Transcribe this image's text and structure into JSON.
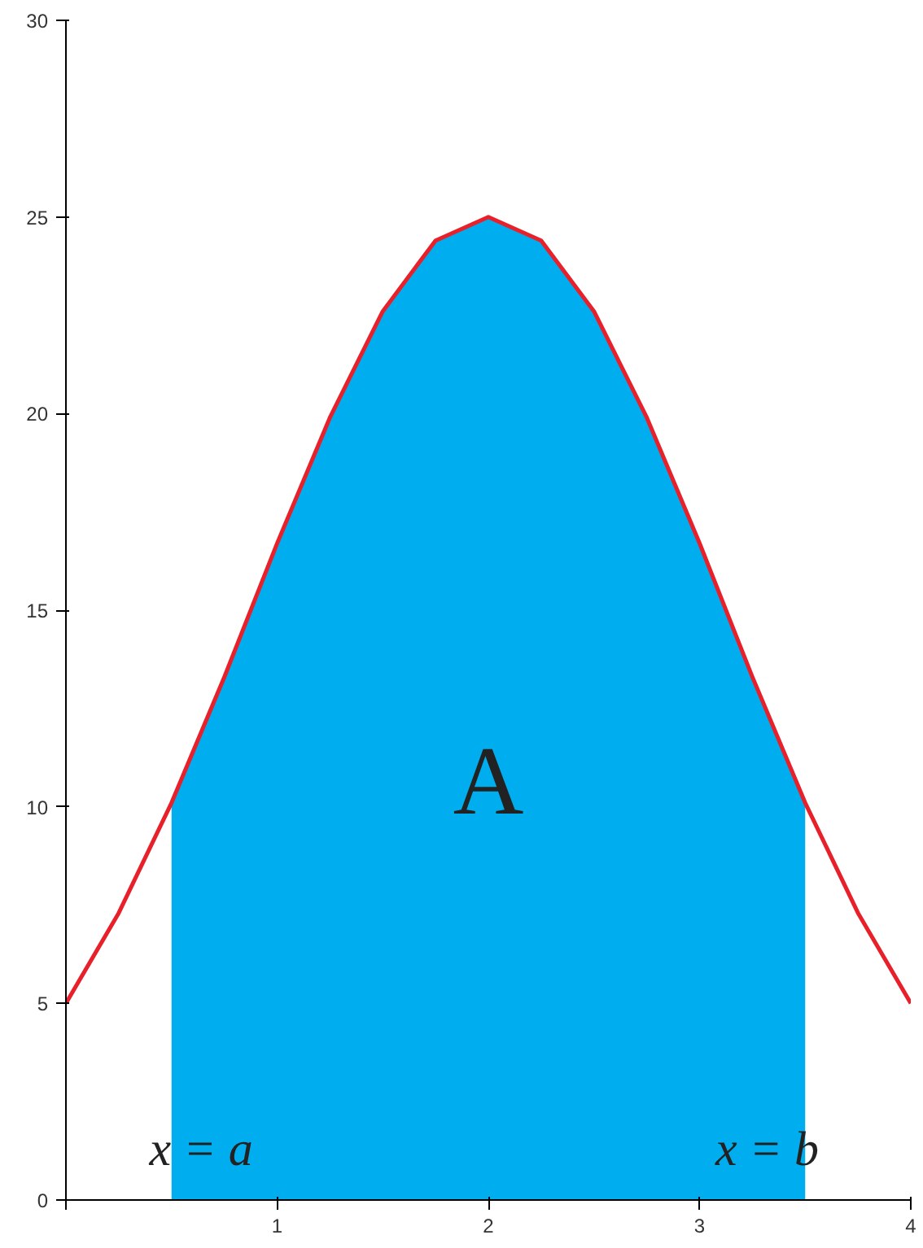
{
  "chart_data": {
    "type": "line",
    "xlim": [
      0,
      4
    ],
    "ylim": [
      0,
      30
    ],
    "xticks": [
      {
        "value": 0,
        "label": null
      },
      1,
      2,
      3,
      4
    ],
    "yticks": [
      0,
      5,
      10,
      15,
      20,
      25,
      30
    ],
    "grid": false,
    "series": [
      {
        "type": "area",
        "color": "#00aeef",
        "x": [
          0.5,
          0.75,
          1.0,
          1.25,
          1.5,
          1.75,
          2.0,
          2.25,
          2.5,
          2.75,
          3.0,
          3.25,
          3.5
        ],
        "values": [
          10.1,
          13.3,
          16.7,
          19.9,
          22.6,
          24.4,
          25,
          24.4,
          22.6,
          19.9,
          16.7,
          13.3,
          10.1
        ]
      },
      {
        "color": "#e8202a",
        "x": [
          0,
          0.25,
          0.5,
          0.75,
          1.0,
          1.25,
          1.5,
          1.75,
          2.0,
          2.25,
          2.5,
          2.75,
          3.0,
          3.25,
          3.5,
          3.75,
          4.0
        ],
        "values": [
          5.0,
          7.3,
          10.1,
          13.3,
          16.7,
          19.9,
          22.6,
          24.4,
          25,
          24.4,
          22.6,
          19.9,
          16.7,
          13.3,
          10.1,
          7.3,
          5.0
        ]
      }
    ],
    "annotations": [
      "A",
      "x = a",
      "x = b"
    ]
  }
}
